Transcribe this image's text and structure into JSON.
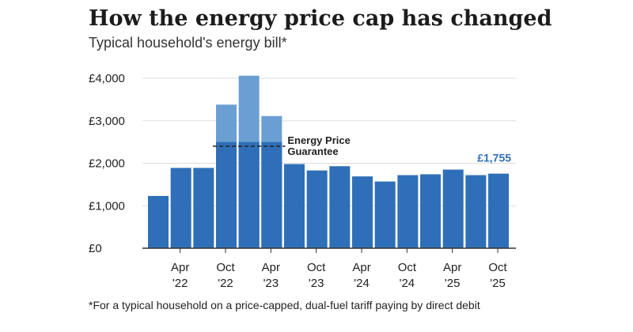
{
  "title": "How the energy price cap has changed",
  "subtitle": "Typical household's energy bill*",
  "footnote": "*For a typical household on a price-capped, dual-fuel tariff paying by direct debit",
  "chart_data": {
    "type": "bar",
    "ylabel": "",
    "xlabel": "",
    "ylim": [
      0,
      4000
    ],
    "grid": true,
    "y_ticks": [
      {
        "value": 0,
        "label": "£0"
      },
      {
        "value": 1000,
        "label": "£1,000"
      },
      {
        "value": 2000,
        "label": "£2,000"
      },
      {
        "value": 3000,
        "label": "£3,000"
      },
      {
        "value": 4000,
        "label": "£4,000"
      }
    ],
    "x_tick_labels": [
      {
        "bar": 1,
        "line1": "Apr",
        "line2": "'22"
      },
      {
        "bar": 3,
        "line1": "Oct",
        "line2": "'22"
      },
      {
        "bar": 5,
        "line1": "Apr",
        "line2": "'23"
      },
      {
        "bar": 7,
        "line1": "Oct",
        "line2": "'23"
      },
      {
        "bar": 9,
        "line1": "Apr",
        "line2": "'24"
      },
      {
        "bar": 11,
        "line1": "Oct",
        "line2": "'24"
      },
      {
        "bar": 13,
        "line1": "Apr",
        "line2": "'25"
      },
      {
        "bar": 15,
        "line1": "Oct",
        "line2": "'25"
      }
    ],
    "series": [
      {
        "values": [
          1230,
          1890,
          1890,
          2500,
          2500,
          2500,
          1980,
          1830,
          1930,
          1690,
          1570,
          1720,
          1740,
          1850,
          1720,
          1755
        ],
        "color": "#2f6fb7"
      },
      {
        "values": [
          0,
          0,
          0,
          3380,
          4060,
          3110,
          0,
          0,
          0,
          0,
          0,
          0,
          0,
          0,
          0,
          0
        ],
        "color": "#6b9fd4"
      }
    ],
    "annotations": [
      {
        "type": "dashed-line",
        "value": 2400,
        "from_bar": 3,
        "to_bar": 5,
        "label_lines": [
          "Energy Price",
          "Guarantee"
        ]
      },
      {
        "type": "value-label",
        "bar": 15,
        "text": "£1,755",
        "color": "#2f6fb7"
      }
    ]
  }
}
